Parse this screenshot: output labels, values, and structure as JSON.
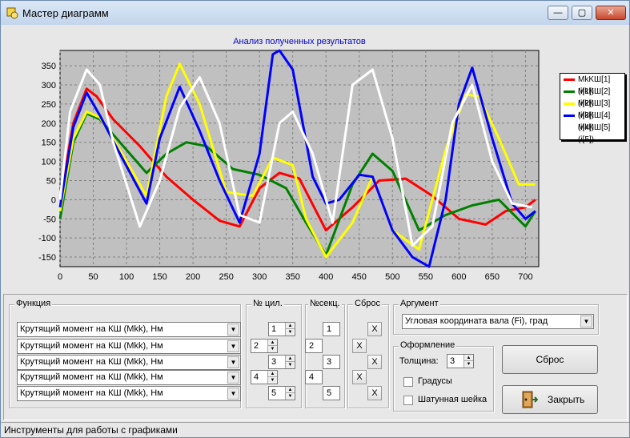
{
  "window": {
    "title": "Мастер диаграмм"
  },
  "titlebar_buttons": {
    "minimize": "—",
    "maximize": "▢",
    "close": "✕"
  },
  "chart_data": {
    "type": "line",
    "title": "Анализ полученных результатов",
    "xlim": [
      0,
      720
    ],
    "ylim": [
      -175,
      390
    ],
    "xticks": [
      0,
      50,
      100,
      150,
      200,
      250,
      300,
      350,
      400,
      450,
      500,
      550,
      600,
      650,
      700
    ],
    "yticks": [
      -150,
      -100,
      -50,
      0,
      50,
      100,
      150,
      200,
      250,
      300,
      350
    ],
    "grid": true,
    "legend_position": "right",
    "series": [
      {
        "name": "MkKШ[1](i[1])",
        "color": "#ff0000",
        "x": [
          0,
          20,
          40,
          55,
          80,
          120,
          160,
          200,
          240,
          270,
          300,
          330,
          360,
          400,
          440,
          480,
          520,
          560,
          600,
          640,
          670,
          700,
          715
        ],
        "y": [
          0,
          200,
          290,
          270,
          210,
          140,
          60,
          0,
          -55,
          -70,
          30,
          70,
          55,
          -80,
          -20,
          50,
          55,
          10,
          -50,
          -65,
          -30,
          -20,
          0
        ]
      },
      {
        "name": "MkKШ[2](i[2])",
        "color": "#008000",
        "x": [
          0,
          20,
          40,
          60,
          90,
          130,
          160,
          190,
          220,
          260,
          300,
          340,
          370,
          400,
          440,
          470,
          500,
          540,
          580,
          620,
          660,
          700,
          715
        ],
        "y": [
          -50,
          150,
          225,
          210,
          150,
          70,
          120,
          150,
          140,
          80,
          65,
          30,
          -60,
          -145,
          40,
          120,
          75,
          -80,
          -40,
          -15,
          0,
          -70,
          -30
        ]
      },
      {
        "name": "MkKШ[3](i[3])",
        "color": "#ffff00",
        "x": [
          0,
          20,
          40,
          60,
          90,
          130,
          160,
          180,
          210,
          250,
          290,
          320,
          350,
          370,
          400,
          440,
          470,
          500,
          540,
          580,
          610,
          630,
          660,
          690,
          715
        ],
        "y": [
          -30,
          160,
          230,
          215,
          130,
          10,
          270,
          355,
          250,
          20,
          10,
          110,
          90,
          -50,
          -150,
          -60,
          60,
          -80,
          -130,
          130,
          275,
          270,
          160,
          40,
          40
        ]
      },
      {
        "name": "MkKШ[4](i[4])",
        "color": "#0000ff",
        "x": [
          0,
          20,
          40,
          60,
          90,
          130,
          150,
          180,
          210,
          240,
          270,
          300,
          320,
          330,
          350,
          380,
          400,
          420,
          450,
          470,
          500,
          530,
          555,
          580,
          600,
          620,
          650,
          680,
          700,
          715
        ],
        "y": [
          -20,
          190,
          280,
          220,
          120,
          -10,
          160,
          295,
          180,
          50,
          -60,
          120,
          380,
          390,
          340,
          60,
          -10,
          0,
          65,
          60,
          -80,
          -150,
          -175,
          0,
          250,
          345,
          160,
          -10,
          -50,
          -30
        ]
      },
      {
        "name": "MkKШ[5](i[5])",
        "color": "#ffffff",
        "x": [
          0,
          15,
          40,
          60,
          80,
          120,
          150,
          180,
          210,
          240,
          270,
          300,
          330,
          350,
          380,
          410,
          440,
          470,
          500,
          530,
          560,
          590,
          620,
          650,
          680,
          710
        ],
        "y": [
          0,
          230,
          340,
          300,
          150,
          -70,
          50,
          240,
          320,
          200,
          -40,
          -60,
          200,
          230,
          120,
          -60,
          300,
          340,
          160,
          -120,
          -70,
          200,
          300,
          100,
          -10,
          -20
        ]
      }
    ]
  },
  "functions": {
    "label": "Функция",
    "rows": [
      {
        "combo": "Крутящий момент на КШ (Mkk), Нм",
        "cyl": "1",
        "sec": "1",
        "x": "X"
      },
      {
        "combo": "Крутящий момент на КШ (Mkk), Нм",
        "cyl": "2",
        "sec": "2",
        "x": "X"
      },
      {
        "combo": "Крутящий момент на КШ (Mkk), Нм",
        "cyl": "3",
        "sec": "3",
        "x": "X"
      },
      {
        "combo": "Крутящий момент на КШ (Mkk), Нм",
        "cyl": "4",
        "sec": "4",
        "x": "X"
      },
      {
        "combo": "Крутящий момент на КШ (Mkk), Нм",
        "cyl": "5",
        "sec": "5",
        "x": "X"
      }
    ]
  },
  "cyl_group": {
    "label": "№ цил."
  },
  "sec_group": {
    "label": "№секц."
  },
  "reset_group": {
    "label": "Сброс"
  },
  "argument": {
    "label": "Аргумент",
    "value": "Угловая координата вала (Fi), град"
  },
  "appearance": {
    "label": "Оформление",
    "thickness_label": "Толщина:",
    "thickness_value": "3",
    "degrees_label": "Градусы",
    "journal_label": "Шатунная шейка"
  },
  "buttons": {
    "reset": "Сброс",
    "close": "Закрыть"
  },
  "status": {
    "text": "Инструменты для работы  с графиками"
  },
  "icons": {
    "spin_up": "▲",
    "spin_down": "▼",
    "combo_arrow": "▼"
  }
}
